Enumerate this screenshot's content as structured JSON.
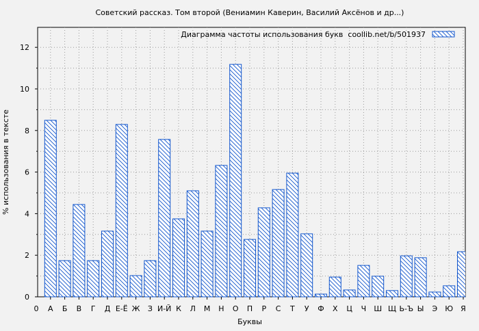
{
  "chart_data": {
    "type": "bar",
    "title": "Советский рассказ. Том второй (Вениамин Каверин, Василий Аксёнов и др...)",
    "legend": "Диаграмма частоты использования букв  coollib.net/b/501937",
    "legend_position": "top-right",
    "xlabel": "Буквы",
    "ylabel": "% использования в тексте",
    "x_origin_label": "0",
    "categories": [
      "А",
      "Б",
      "В",
      "Г",
      "Д",
      "Е-Ё",
      "Ж",
      "З",
      "И-Й",
      "К",
      "Л",
      "М",
      "Н",
      "О",
      "П",
      "Р",
      "С",
      "Т",
      "У",
      "Ф",
      "Х",
      "Ц",
      "Ч",
      "Ш",
      "Щ",
      "Ь-Ъ",
      "Ы",
      "Э",
      "Ю",
      "Я"
    ],
    "values": [
      8.49,
      1.74,
      4.44,
      1.74,
      3.16,
      8.29,
      1.02,
      1.74,
      7.57,
      3.75,
      5.1,
      3.16,
      6.32,
      11.18,
      2.76,
      4.28,
      5.16,
      5.95,
      3.03,
      0.13,
      0.95,
      0.33,
      1.51,
      0.99,
      0.3,
      1.97,
      1.88,
      0.23,
      0.53,
      2.17
    ],
    "ylim": [
      0,
      13
    ],
    "yticks": [
      0,
      2,
      4,
      6,
      8,
      10,
      12
    ],
    "grid": true,
    "bar_color": "#1155cc"
  }
}
